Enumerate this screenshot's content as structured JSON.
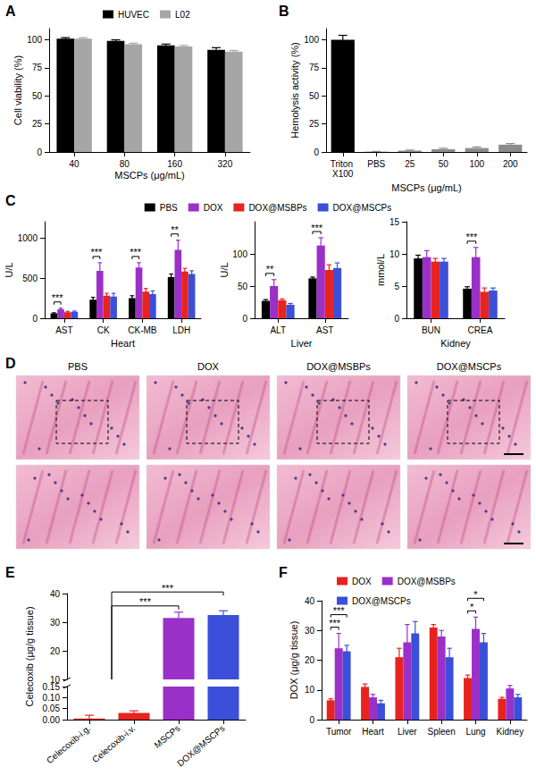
{
  "chart_data": [
    {
      "title": "A",
      "type": "bar",
      "categories": [
        "40",
        "80",
        "160",
        "320"
      ],
      "xlabel": "MSCPs (μg/mL)",
      "ylabel": "Cell viability (%)",
      "ylim": [
        0,
        110
      ],
      "yticks": [
        0,
        25,
        50,
        75,
        100
      ],
      "grid": false,
      "legend": "top",
      "series": [
        {
          "name": "HUVEC",
          "color": "#000000",
          "values": [
            101,
            99,
            95,
            91
          ],
          "errors": [
            1,
            1,
            1.2,
            2
          ]
        },
        {
          "name": "L02",
          "color": "#a6a6a6",
          "values": [
            101,
            96,
            94,
            89.5
          ],
          "errors": [
            1,
            1,
            1,
            1
          ]
        }
      ]
    },
    {
      "title": "B",
      "type": "bar",
      "categories": [
        "Triton X100",
        "PBS",
        "25",
        "50",
        "100",
        "200"
      ],
      "xlabel": "MSCPs (μg/mL)",
      "ylabel": "Hemolysis activity (%)",
      "ylim": [
        0,
        110
      ],
      "yticks": [
        0,
        25,
        50,
        75,
        100
      ],
      "grid": false,
      "values": [
        100,
        0.3,
        1.2,
        2.5,
        3.5,
        6.5
      ],
      "errors": [
        4,
        0.2,
        0.5,
        0.8,
        1,
        1
      ],
      "colors": [
        "#000000",
        "#8c8c8c",
        "#8c8c8c",
        "#8c8c8c",
        "#8c8c8c",
        "#8c8c8c"
      ]
    },
    {
      "title": "C",
      "type": "bar",
      "categories": [
        "AST",
        "CK",
        "CK-MB",
        "LDH"
      ],
      "xlabel": "Heart",
      "ylabel": "U/L",
      "ylim": [
        0,
        1200
      ],
      "yticks": [
        0,
        500,
        1000
      ],
      "grid": false,
      "legend": "top",
      "series": [
        {
          "name": "PBS",
          "color": "#000000",
          "values": [
            60,
            230,
            250,
            510
          ],
          "errors": [
            8,
            30,
            30,
            40
          ]
        },
        {
          "name": "DOX",
          "color": "#9b30c8",
          "values": [
            110,
            590,
            630,
            850
          ],
          "errors": [
            15,
            100,
            60,
            120
          ]
        },
        {
          "name": "DOX@MSBPs",
          "color": "#e8231f",
          "values": [
            75,
            280,
            330,
            580
          ],
          "errors": [
            10,
            30,
            40,
            40
          ]
        },
        {
          "name": "DOX@MSCPs",
          "color": "#3b4fd8",
          "values": [
            80,
            270,
            300,
            550
          ],
          "errors": [
            10,
            40,
            40,
            40
          ]
        }
      ],
      "annotations": [
        {
          "category": "AST",
          "between": [
            "PBS",
            "DOX"
          ],
          "text": "***"
        },
        {
          "category": "CK",
          "between": [
            "PBS",
            "DOX"
          ],
          "text": "***"
        },
        {
          "category": "CK-MB",
          "between": [
            "PBS",
            "DOX"
          ],
          "text": "***"
        },
        {
          "category": "LDH",
          "between": [
            "PBS",
            "DOX"
          ],
          "text": "**"
        }
      ]
    },
    {
      "type": "bar",
      "categories": [
        "ALT",
        "AST"
      ],
      "xlabel": "Liver",
      "ylabel": "U/L",
      "ylim": [
        0,
        150
      ],
      "yticks": [
        0,
        50,
        100
      ],
      "grid": false,
      "series": [
        {
          "name": "PBS",
          "color": "#000000",
          "values": [
            27,
            62
          ],
          "errors": [
            2,
            2
          ]
        },
        {
          "name": "DOX",
          "color": "#9b30c8",
          "values": [
            50,
            113
          ],
          "errors": [
            10,
            12
          ]
        },
        {
          "name": "DOX@MSBPs",
          "color": "#e8231f",
          "values": [
            28,
            75
          ],
          "errors": [
            2,
            8
          ]
        },
        {
          "name": "DOX@MSCPs",
          "color": "#3b4fd8",
          "values": [
            21,
            78
          ],
          "errors": [
            2,
            8
          ]
        }
      ],
      "annotations": [
        {
          "category": "ALT",
          "between": [
            "PBS",
            "DOX"
          ],
          "text": "**"
        },
        {
          "category": "AST",
          "between": [
            "PBS",
            "DOX"
          ],
          "text": "***"
        }
      ]
    },
    {
      "type": "bar",
      "categories": [
        "BUN",
        "CREA"
      ],
      "xlabel": "Kidney",
      "ylabel": "mmol/L",
      "ylim": [
        0,
        15
      ],
      "yticks": [
        0,
        5,
        10,
        15
      ],
      "grid": false,
      "series": [
        {
          "name": "PBS",
          "color": "#000000",
          "values": [
            9.3,
            4.6
          ],
          "errors": [
            0.5,
            0.3
          ]
        },
        {
          "name": "DOX",
          "color": "#9b30c8",
          "values": [
            9.5,
            9.5
          ],
          "errors": [
            1,
            1.5
          ]
        },
        {
          "name": "DOX@MSBPs",
          "color": "#e8231f",
          "values": [
            8.8,
            4.1
          ],
          "errors": [
            0.5,
            0.6
          ]
        },
        {
          "name": "DOX@MSCPs",
          "color": "#3b4fd8",
          "values": [
            8.8,
            4.3
          ],
          "errors": [
            0.5,
            0.4
          ]
        }
      ],
      "annotations": [
        {
          "category": "CREA",
          "between": [
            "PBS",
            "DOX"
          ],
          "text": "***"
        }
      ]
    },
    {
      "title": "E",
      "type": "bar",
      "categories": [
        "Celecoxib-i.g.",
        "Celecoxib-i.v.",
        "MSCPs",
        "DOX@MSCPs"
      ],
      "ylabel": "Celecoxib (μg/g tissue)",
      "ylim": [
        0,
        40
      ],
      "y_break": [
        0.15,
        10
      ],
      "yticks": [
        {
          "value": 0,
          "label": "0.00"
        },
        0.05,
        {
          "value": 0.1,
          "label": "0.10"
        },
        0.15,
        10,
        20,
        30,
        40
      ],
      "grid": false,
      "values": [
        0.005,
        0.03,
        31.5,
        32.5
      ],
      "errors": [
        0.015,
        0.01,
        2,
        1.5
      ],
      "colors": [
        "#e8231f",
        "#e8231f",
        "#9b30c8",
        "#3b4fd8"
      ],
      "annotations": [
        {
          "from": [
            "Celecoxib-i.g.",
            "Celecoxib-i.v."
          ],
          "to": "MSCPs",
          "text": "***"
        },
        {
          "from": [
            "Celecoxib-i.g.",
            "Celecoxib-i.v."
          ],
          "to": "DOX@MSCPs",
          "text": "***"
        }
      ]
    },
    {
      "title": "F",
      "type": "bar",
      "categories": [
        "Tumor",
        "Heart",
        "Liver",
        "Spleen",
        "Lung",
        "Kidney"
      ],
      "ylabel": "DOX (μg/g tissue)",
      "ylim": [
        0,
        40
      ],
      "yticks": [
        0,
        10,
        20,
        30,
        40
      ],
      "grid": false,
      "legend": "top",
      "series": [
        {
          "name": "DOX",
          "color": "#e8231f",
          "values": [
            6.5,
            11,
            21,
            31,
            14,
            7
          ],
          "errors": [
            0.5,
            1,
            3,
            1,
            1,
            0.5
          ]
        },
        {
          "name": "DOX@MSBPs",
          "color": "#9b30c8",
          "values": [
            24,
            7.5,
            26,
            28,
            30.5,
            10.5
          ],
          "errors": [
            5,
            1,
            6,
            2,
            4,
            1
          ]
        },
        {
          "name": "DOX@MSCPs",
          "color": "#3b4fd8",
          "values": [
            23,
            5.5,
            29,
            21,
            26,
            7.5
          ],
          "errors": [
            2,
            1,
            4,
            3,
            3,
            1
          ]
        }
      ],
      "annotations": [
        {
          "category": "Tumor",
          "between": [
            "DOX",
            "DOX@MSBPs"
          ],
          "text": "***"
        },
        {
          "category": "Tumor",
          "between": [
            "DOX",
            "DOX@MSCPs"
          ],
          "text": "***"
        },
        {
          "category": "Lung",
          "between": [
            "DOX",
            "DOX@MSBPs"
          ],
          "text": "*"
        },
        {
          "category": "Lung",
          "between": [
            "DOX",
            "DOX@MSCPs"
          ],
          "text": "*"
        }
      ]
    }
  ],
  "micrographs": {
    "title": "D",
    "columns": [
      "PBS",
      "DOX",
      "DOX@MSBPs",
      "DOX@MSCPs"
    ]
  }
}
